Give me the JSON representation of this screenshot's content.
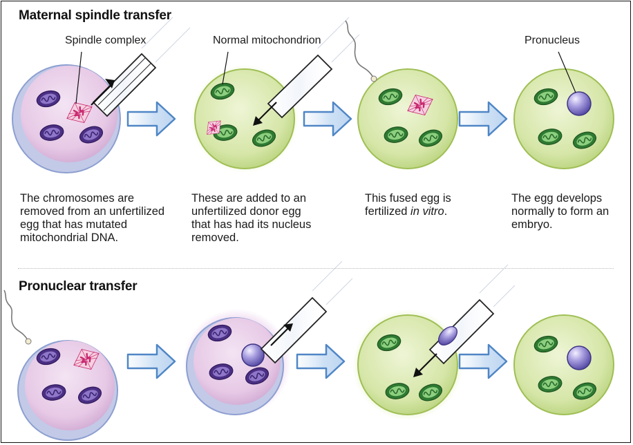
{
  "sections": [
    {
      "title": "Maternal spindle transfer",
      "callouts": [
        "Spindle complex",
        "Normal mitochondrion",
        "Pronucleus"
      ],
      "steps": [
        {
          "caption_lines": [
            "The chromosomes are",
            "removed from an unfertilized",
            "egg that has mutated",
            "mitochondrial DNA."
          ]
        },
        {
          "caption_lines": [
            "These are added to an",
            "unfertilized donor egg",
            "that has had its nucleus",
            "removed."
          ]
        },
        {
          "caption_lines": [
            "This fused egg is",
            "fertilized "
          ],
          "italic": "in vitro",
          "tail": "."
        },
        {
          "caption_lines": [
            "The egg develops",
            "normally to form an",
            "embryo."
          ]
        }
      ]
    },
    {
      "title": "Pronuclear transfer"
    }
  ],
  "colors": {
    "patient_egg": "#e7c9e6",
    "patient_rim": "#8d9fd0",
    "donor_egg": "#d6e6a8",
    "donor_rim": "#9fbf55",
    "mutant_mito": "#5b3f92",
    "normal_mito": "#3f8a3c",
    "spindle": "#c8266e",
    "pronucleus": "#7b6fc7",
    "arrow": "#4f86c6"
  }
}
